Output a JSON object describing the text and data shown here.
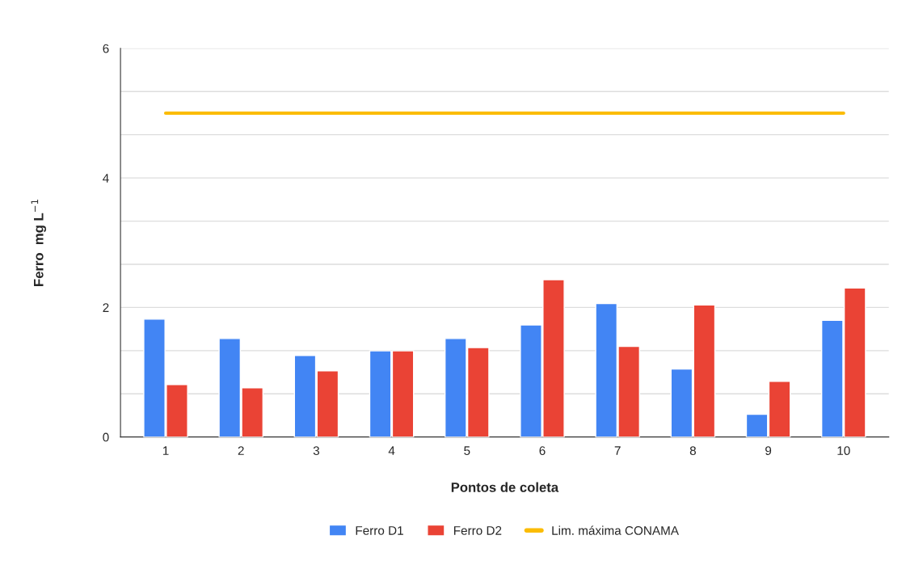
{
  "chart_data": {
    "type": "bar",
    "xlabel": "Pontos de coleta",
    "ylabel": "Ferro  mg L$^{−1}$",
    "categories": [
      "1",
      "2",
      "3",
      "4",
      "5",
      "6",
      "7",
      "8",
      "9",
      "10"
    ],
    "series": [
      {
        "name": "Ferro D1",
        "color": "#4285f4",
        "values": [
          1.82,
          1.52,
          1.26,
          1.33,
          1.52,
          1.73,
          2.06,
          1.05,
          0.35,
          1.8
        ]
      },
      {
        "name": "Ferro D2",
        "color": "#ea4335",
        "values": [
          0.81,
          0.76,
          1.02,
          1.33,
          1.38,
          2.43,
          1.4,
          2.04,
          0.86,
          2.3
        ]
      },
      {
        "name": "Lim. máxima CONAMA",
        "color": "#fbbc04",
        "type": "line",
        "values": [
          5,
          5,
          5,
          5,
          5,
          5,
          5,
          5,
          5,
          5
        ]
      }
    ],
    "ylim": [
      0,
      6
    ],
    "yticks": [
      0,
      {
        "value": 0.667,
        "label": null
      },
      {
        "value": 1.333,
        "label": null
      },
      2,
      {
        "value": 2.667,
        "label": null
      },
      {
        "value": 3.333,
        "label": null
      },
      4,
      {
        "value": 4.667,
        "label": null
      },
      {
        "value": 5.333,
        "label": null
      },
      6
    ],
    "grid": "y",
    "legend": "bottom"
  }
}
